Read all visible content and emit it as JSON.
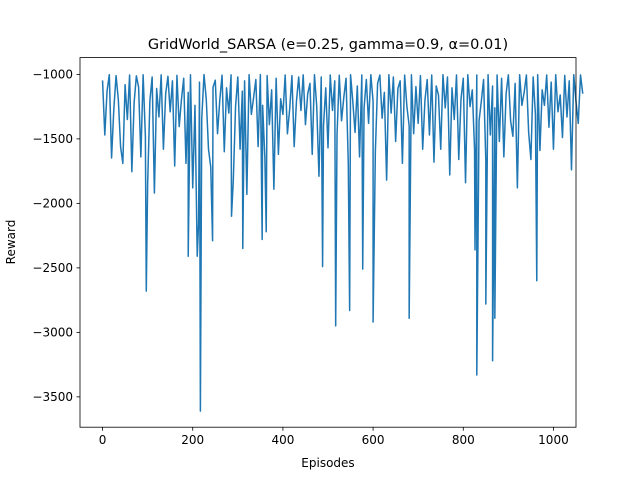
{
  "chart_data": {
    "type": "line",
    "title": "GridWorld_SARSA (e=0.25, gamma=0.9, α=0.01)",
    "xlabel": "Episodes",
    "ylabel": "Reward",
    "xlim": [
      -50,
      1050
    ],
    "ylim": [
      -3735,
      -870
    ],
    "xticks": [
      0,
      200,
      400,
      600,
      800,
      1000
    ],
    "xtick_labels": [
      "0",
      "200",
      "400",
      "600",
      "800",
      "1000"
    ],
    "yticks": [
      -1000,
      -1500,
      -2000,
      -2500,
      -3000,
      -3500
    ],
    "ytick_labels": [
      "−1000",
      "−1500",
      "−2000",
      "−2500",
      "−3000",
      "−3500"
    ],
    "grid": false,
    "legend": "none",
    "series": [
      {
        "color": "#1f77b4",
        "x_start": 0,
        "x_step": 5,
        "values": [
          -1047,
          -1470,
          -1130,
          -1002,
          -1648,
          -1270,
          -1010,
          -1195,
          -1560,
          -1690,
          -1080,
          -1350,
          -1005,
          -1755,
          -1220,
          -1012,
          -1100,
          -1640,
          -1003,
          -1480,
          -1850,
          -1206,
          -1020,
          -1920,
          -1110,
          -1330,
          -1004,
          -1580,
          -1150,
          -1015,
          -1290,
          -1050,
          -1710,
          -1008,
          -1405,
          -1195,
          -1030,
          -1690,
          -1140,
          -1003,
          -1880,
          -1240,
          -2410,
          -1060,
          -1340,
          -1002,
          -1190,
          -1580,
          -1720,
          -1100,
          -1045,
          -1460,
          -1200,
          -1006,
          -1600,
          -1105,
          -1300,
          -1004,
          -1820,
          -1250,
          -1020,
          -1580,
          -1130,
          -1050,
          -1930,
          -1003,
          -1310,
          -1180,
          -1040,
          -1560,
          -1002,
          -1240,
          -1650,
          -1010,
          -1390,
          -1120,
          -1890,
          -1030,
          -1620,
          -1190,
          -1310,
          -1005,
          -1460,
          -1270,
          -1010,
          -1560,
          -1210,
          -1020,
          -1280,
          -1004,
          -1390,
          -1150,
          -1070,
          -1620,
          -1003,
          -1250,
          -1790,
          -1020,
          -1400,
          -1105,
          -1570,
          -1005,
          -1280,
          -1050,
          -1470,
          -1007,
          -1360,
          -1180,
          -1030,
          -1690,
          -1003,
          -1210,
          -1450,
          -1090,
          -1640,
          -1005,
          -1260,
          -1040,
          -1380,
          -1003,
          -1210,
          -1600,
          -1070,
          -1005,
          -1340,
          -1140,
          -1820,
          -1003,
          -1300,
          -1020,
          -1520,
          -1110,
          -1050,
          -1690,
          -1006,
          -1250,
          -1400,
          -1004,
          -1460,
          -1095,
          -1380,
          -1010,
          -1580,
          -1200,
          -1040,
          -1470,
          -1005,
          -1680,
          -1090,
          -1160,
          -1580,
          -1003,
          -1260,
          -1020,
          -1780,
          -1105,
          -1350,
          -1005,
          -1660,
          -1190,
          -1030,
          -1840,
          -1003,
          -1250,
          -1120,
          -1580,
          -1005,
          -1360,
          -1210,
          -1040,
          -1670,
          -1003,
          -1470,
          -1090,
          -1260,
          -1005,
          -1520,
          -1030,
          -1640,
          -1150,
          -1004,
          -1360,
          -1480,
          -1070,
          -1880,
          -1003,
          -1240,
          -1140,
          -1005,
          -1450,
          -1660,
          -1020,
          -1310,
          -1003,
          -1590,
          -1120,
          -1240,
          -1005,
          -1410,
          -1060,
          -1580,
          -1003,
          -1290,
          -1160,
          -1490,
          -1008,
          -1330,
          -1050,
          -1740,
          -1003,
          -1210,
          -1380,
          -1005,
          -1150
        ]
      }
    ],
    "spikes": [
      {
        "x": 97,
        "value": -2680
      },
      {
        "x": 190,
        "value": -2410
      },
      {
        "x": 213,
        "value": -2150
      },
      {
        "x": 217,
        "value": -3610
      },
      {
        "x": 244,
        "value": -2290
      },
      {
        "x": 286,
        "value": -2100
      },
      {
        "x": 311,
        "value": -2350
      },
      {
        "x": 354,
        "value": -2280
      },
      {
        "x": 363,
        "value": -2220
      },
      {
        "x": 488,
        "value": -2490
      },
      {
        "x": 517,
        "value": -2950
      },
      {
        "x": 548,
        "value": -2830
      },
      {
        "x": 577,
        "value": -2510
      },
      {
        "x": 600,
        "value": -2920
      },
      {
        "x": 680,
        "value": -2890
      },
      {
        "x": 826,
        "value": -2360
      },
      {
        "x": 830,
        "value": -3330
      },
      {
        "x": 850,
        "value": -2780
      },
      {
        "x": 865,
        "value": -3220
      },
      {
        "x": 870,
        "value": -2890
      },
      {
        "x": 963,
        "value": -2600
      }
    ]
  }
}
